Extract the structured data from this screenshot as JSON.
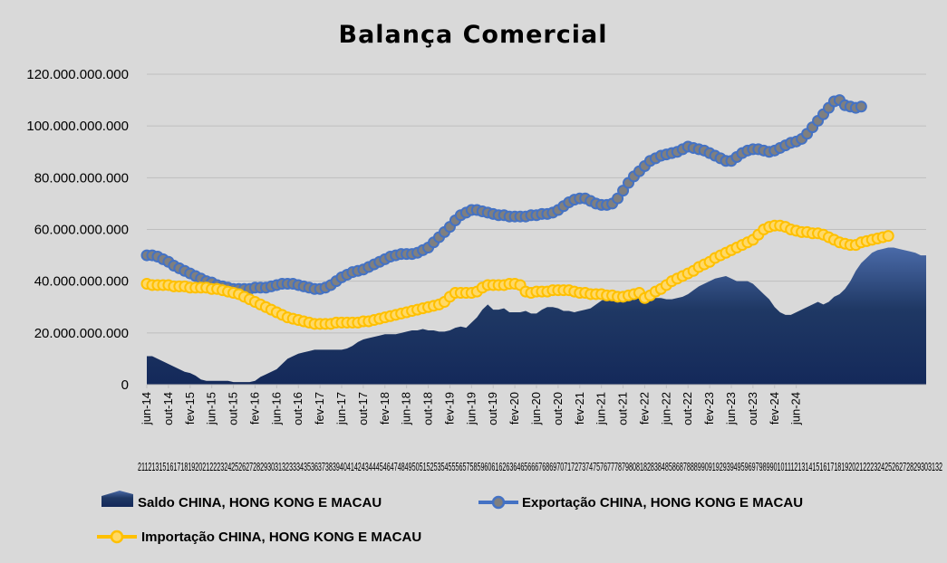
{
  "chart_data": {
    "type": "line",
    "title": "Balança Comercial",
    "xlabel": "",
    "ylabel": "",
    "ylim": [
      0,
      120000000000
    ],
    "yticks": [
      0,
      20000000000,
      40000000000,
      60000000000,
      80000000000,
      100000000000,
      120000000000
    ],
    "ytick_labels": [
      "0",
      "20.000.000.000",
      "40.000.000.000",
      "60.000.000.000",
      "80.000.000.000",
      "100.000.000.000",
      "120.000.000.000"
    ],
    "x_tick_labels": [
      "jun-14",
      "out-14",
      "fev-15",
      "jun-15",
      "out-15",
      "fev-16",
      "jun-16",
      "out-16",
      "fev-17",
      "jun-17",
      "out-17",
      "fev-18",
      "jun-18",
      "out-18",
      "fev-19",
      "jun-19",
      "out-19",
      "fev-20",
      "jun-20",
      "out-20",
      "fev-21",
      "jun-21",
      "out-21",
      "fev-22",
      "jun-22",
      "out-22",
      "fev-23",
      "jun-23",
      "out-23",
      "fev-24",
      "jun-24"
    ],
    "x_tick_months": [
      0,
      4,
      8,
      12,
      16,
      20,
      24,
      28,
      32,
      36,
      40,
      44,
      48,
      52,
      56,
      60,
      64,
      68,
      72,
      76,
      80,
      84,
      88,
      92,
      96,
      100,
      104,
      108,
      112,
      116,
      120
    ],
    "secondary_labels": "2112131516171819202122232425262728293031323334353637383940414243444546474849505152535455565758596061626364656667686970717273747576777879808182838485868788899091929394959697989901011121314151617181920212223242526272829303132",
    "legend_position": "bottom",
    "series": [
      {
        "name": "Saldo CHINA, HONG KONG E MACAU",
        "kind": "area",
        "color": "#1f3864",
        "values": [
          11,
          11,
          10,
          9,
          8,
          7,
          6,
          5,
          4.5,
          3.5,
          2,
          1.5,
          1.5,
          1.5,
          1.5,
          1.5,
          1,
          1,
          1,
          1,
          1.5,
          3,
          4,
          5,
          6,
          8,
          10,
          11,
          12,
          12.5,
          13,
          13.5,
          13.5,
          13.5,
          13.5,
          13.5,
          13.5,
          14,
          15,
          16.5,
          17.5,
          18,
          18.5,
          19,
          19.5,
          19.5,
          19.5,
          20,
          20.5,
          21,
          21,
          21.5,
          21,
          21,
          20.5,
          20.5,
          21,
          22,
          22.5,
          22,
          24,
          26,
          29,
          31,
          29,
          29,
          29.5,
          28,
          28,
          28,
          28.5,
          27.5,
          27.5,
          29,
          30,
          30,
          29.5,
          28.5,
          28.5,
          28,
          28.5,
          29,
          29.5,
          31,
          32.5,
          33.5,
          34,
          34.5,
          35,
          35.5,
          35.5,
          35.5,
          35,
          34,
          33.5,
          33.5,
          33,
          33,
          33.5,
          34,
          35,
          36.5,
          38,
          39,
          40,
          41,
          41.5,
          42,
          41,
          40,
          40,
          40,
          39,
          37,
          35,
          33,
          30,
          28,
          27,
          27,
          28,
          29,
          30,
          31,
          32,
          31,
          32,
          34,
          35,
          37,
          40,
          44,
          47,
          49,
          51,
          52,
          52.5,
          53,
          53,
          52.5,
          52,
          51.5,
          51,
          50,
          50
        ]
      },
      {
        "name": "Exportação CHINA, HONG KONG E MACAU",
        "kind": "line",
        "color": "#4472c4",
        "marker_fill": "#7f7f7f",
        "values": [
          50,
          50,
          49.5,
          48.5,
          47.5,
          46,
          45,
          44,
          43,
          42,
          41,
          40,
          39.5,
          38.5,
          38,
          37.5,
          37,
          37,
          37,
          37,
          37.5,
          37.5,
          37.5,
          38,
          38.5,
          39,
          39,
          39,
          38.5,
          38,
          37.5,
          37,
          37,
          37.5,
          38.5,
          40,
          41.5,
          42.5,
          43.5,
          44,
          44.5,
          45.5,
          46.5,
          47.5,
          48.5,
          49.5,
          50,
          50.5,
          50.5,
          50.5,
          51,
          52,
          53,
          55,
          57,
          59,
          61,
          63.5,
          65.5,
          66.5,
          67.5,
          67.5,
          67,
          66.5,
          66,
          65.5,
          65.5,
          65,
          65,
          65,
          65,
          65.5,
          65.5,
          66,
          66,
          66.5,
          67.5,
          69,
          70.5,
          71.5,
          72,
          72,
          71,
          70,
          69.5,
          69.5,
          70,
          72,
          75,
          78,
          80.5,
          82.5,
          84.5,
          86.5,
          87.5,
          88.5,
          89,
          89.5,
          90,
          91,
          92,
          91.5,
          91,
          90.5,
          89.5,
          88.5,
          87.5,
          86.5,
          86.5,
          88,
          89.5,
          90.5,
          91,
          91,
          90.5,
          90,
          90.5,
          91.5,
          92.5,
          93.5,
          94,
          95,
          97,
          99.5,
          102,
          104.5,
          107,
          109.5,
          110,
          108,
          107.5,
          107,
          107.5
        ]
      },
      {
        "name": "Importação CHINA, HONG KONG E MACAU",
        "kind": "line",
        "color": "#ffc000",
        "marker_fill": "#ffd966",
        "values": [
          39,
          38.5,
          38.5,
          38.5,
          38.5,
          38,
          38,
          38,
          37.5,
          37.5,
          37.5,
          37.5,
          37,
          37,
          36.5,
          36,
          35.5,
          35,
          34,
          33,
          32,
          31,
          30,
          29,
          28,
          27,
          26,
          25.5,
          25,
          24.5,
          24,
          23.5,
          23.5,
          23.5,
          23.5,
          24,
          24,
          24,
          24,
          24,
          24.5,
          24.5,
          25,
          25.5,
          26,
          26.5,
          27,
          27.5,
          28,
          28.5,
          29,
          29.5,
          30,
          30.5,
          31,
          32,
          34,
          35.5,
          35.5,
          35.5,
          35.5,
          36,
          37.5,
          38.5,
          38.5,
          38.5,
          38.5,
          39,
          39,
          38.5,
          36,
          35.5,
          36,
          36,
          36,
          36.5,
          36.5,
          36.5,
          36.5,
          36,
          35.5,
          35.5,
          35,
          35,
          35,
          34.5,
          34.5,
          34,
          34,
          34.5,
          35,
          35.5,
          33.5,
          34.5,
          36,
          37,
          38.5,
          40,
          41,
          42,
          43,
          44,
          45.5,
          46.5,
          47.5,
          49,
          50,
          51,
          52,
          53,
          54,
          55,
          56,
          58,
          60,
          61,
          61.5,
          61.5,
          61,
          60,
          59.5,
          59,
          59,
          58.5,
          58.5,
          58,
          57,
          56,
          55,
          54.5,
          54,
          54,
          55,
          55.5,
          56,
          56.5,
          57,
          57.5
        ]
      }
    ]
  }
}
